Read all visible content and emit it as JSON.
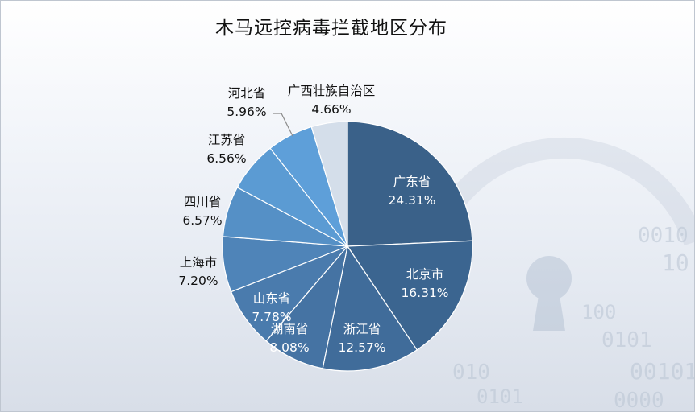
{
  "chart_data": {
    "type": "pie",
    "title": "木马远控病毒拦截地区分布",
    "categories": [
      "广东省",
      "北京市",
      "浙江省",
      "湖南省",
      "山东省",
      "上海市",
      "四川省",
      "江苏省",
      "河北省",
      "广西壮族自治区"
    ],
    "values": [
      24.31,
      16.31,
      12.57,
      8.08,
      7.78,
      7.2,
      6.57,
      6.56,
      5.96,
      4.66
    ],
    "value_labels": [
      "24.31%",
      "16.31%",
      "12.57%",
      "8.08%",
      "7.78%",
      "7.20%",
      "6.57%",
      "6.56%",
      "5.96%",
      "4.66%"
    ],
    "colors": [
      "#3a6189",
      "#3b6590",
      "#406c9a",
      "#4573a3",
      "#4a7bad",
      "#4f84b8",
      "#5590c6",
      "#5b9bd3",
      "#5e9fd9",
      "#d4deea"
    ],
    "label_colors": [
      "#ffffff",
      "#ffffff",
      "#ffffff",
      "#ffffff",
      "#ffffff",
      "#111111",
      "#111111",
      "#111111",
      "#111111",
      "#111111"
    ],
    "start_angle_deg": 0,
    "direction": "clockwise"
  }
}
